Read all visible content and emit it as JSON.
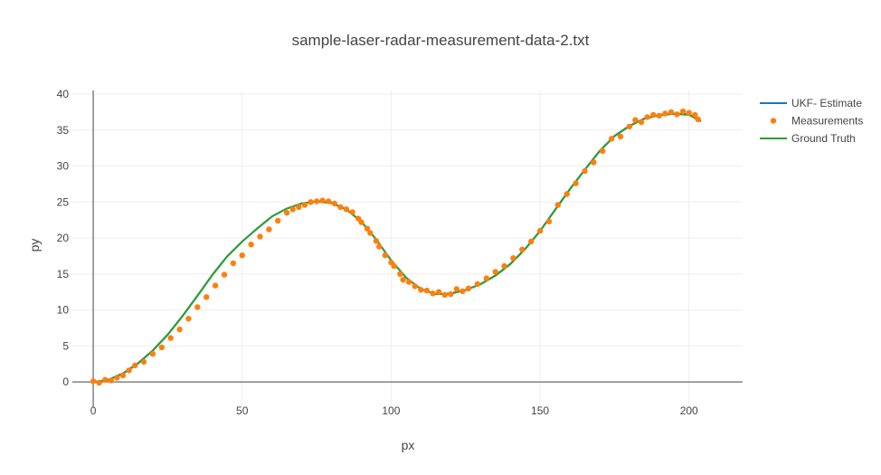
{
  "chart_data": {
    "type": "line",
    "title": "sample-laser-radar-measurement-data-2.txt",
    "xlabel": "px",
    "ylabel": "py",
    "xlim": [
      -7,
      218
    ],
    "ylim": [
      -3.5,
      40.5
    ],
    "x_ticks": [
      0,
      50,
      100,
      150,
      200
    ],
    "y_ticks": [
      0,
      5,
      10,
      15,
      20,
      25,
      30,
      35,
      40
    ],
    "grid": true,
    "legend_position": "top-right",
    "colors": {
      "estimate": "#1f77b4",
      "measurements": "#ff7f0e",
      "ground_truth": "#2ca02c"
    },
    "series": [
      {
        "name": "UKF- Estimate",
        "mode": "lines",
        "x": [
          0,
          5,
          10,
          15,
          20,
          25,
          30,
          35,
          40,
          45,
          50,
          55,
          60,
          65,
          70,
          75,
          80,
          85,
          90,
          95,
          100,
          105,
          110,
          115,
          120,
          125,
          130,
          135,
          140,
          145,
          150,
          155,
          160,
          165,
          170,
          175,
          180,
          185,
          190,
          195,
          200,
          204
        ],
        "y": [
          0,
          0.3,
          1.2,
          2.6,
          4.4,
          6.6,
          9.2,
          12,
          14.9,
          17.5,
          19.5,
          21.3,
          23,
          24.1,
          24.8,
          25.1,
          24.9,
          24,
          22.3,
          19.8,
          16.9,
          14.5,
          12.9,
          12.2,
          12.3,
          12.8,
          13.6,
          14.8,
          16.4,
          18.5,
          21,
          23.9,
          26.8,
          29.5,
          32.1,
          34.2,
          35.6,
          36.6,
          37.1,
          37.3,
          37.2,
          36.3
        ]
      },
      {
        "name": "Measurements",
        "mode": "markers",
        "x": [
          0,
          2,
          4,
          6,
          8,
          10,
          12,
          14,
          17,
          20,
          23,
          26,
          29,
          32,
          35,
          38,
          41,
          44,
          47,
          50,
          53,
          56,
          59,
          62,
          65,
          67,
          69,
          71,
          73,
          75,
          77,
          79,
          81,
          83,
          85,
          87,
          89,
          90,
          92,
          93,
          95,
          96,
          98,
          100,
          101,
          103,
          104,
          106,
          108,
          110,
          112,
          114,
          116,
          118,
          120,
          122,
          124,
          126,
          129,
          132,
          135,
          138,
          141,
          144,
          147,
          150,
          153,
          156,
          159,
          162,
          165,
          168,
          171,
          174,
          177,
          180,
          182,
          184,
          186,
          188,
          190,
          192,
          194,
          196,
          198,
          200,
          202,
          203
        ],
        "y": [
          0.1,
          -0.1,
          0.3,
          0.2,
          0.6,
          0.9,
          1.6,
          2.3,
          2.8,
          3.9,
          4.8,
          6.1,
          7.3,
          8.8,
          10.4,
          11.8,
          13.4,
          14.9,
          16.5,
          17.6,
          19.1,
          20.2,
          21.2,
          22.4,
          23.5,
          24,
          24.3,
          24.6,
          25,
          25.1,
          25.2,
          25.1,
          24.8,
          24.3,
          24,
          23.6,
          22.7,
          22.2,
          21.3,
          20.7,
          19.6,
          18.8,
          17.6,
          16.6,
          16.1,
          15,
          14.2,
          13.9,
          13.3,
          12.8,
          12.7,
          12.3,
          12.5,
          12.1,
          12.2,
          12.9,
          12.6,
          13,
          13.6,
          14.4,
          15.3,
          16.1,
          17.2,
          18.4,
          19.5,
          21,
          22.3,
          24.6,
          26.1,
          27.6,
          29.3,
          30.5,
          32.1,
          33.8,
          34.1,
          35.5,
          36.4,
          36.1,
          36.8,
          37.1,
          37,
          37.3,
          37.5,
          37.2,
          37.6,
          37.4,
          37.1,
          36.5
        ]
      },
      {
        "name": "Ground Truth",
        "mode": "lines",
        "x": [
          0,
          5,
          10,
          15,
          20,
          25,
          30,
          35,
          40,
          45,
          50,
          55,
          60,
          65,
          70,
          75,
          80,
          85,
          90,
          95,
          100,
          105,
          110,
          115,
          120,
          125,
          130,
          135,
          140,
          145,
          150,
          155,
          160,
          165,
          170,
          175,
          180,
          185,
          190,
          195,
          200,
          204
        ],
        "y": [
          0,
          0.25,
          1.15,
          2.55,
          4.35,
          6.55,
          9.15,
          11.95,
          14.85,
          17.45,
          19.5,
          21.3,
          23,
          24.1,
          24.8,
          25.05,
          24.85,
          23.95,
          22.25,
          19.8,
          16.9,
          14.5,
          12.9,
          12.2,
          12.25,
          12.75,
          13.55,
          14.75,
          16.35,
          18.45,
          20.95,
          23.85,
          26.75,
          29.45,
          32.05,
          34.15,
          35.55,
          36.55,
          37.05,
          37.25,
          37.1,
          36.2
        ]
      }
    ]
  }
}
